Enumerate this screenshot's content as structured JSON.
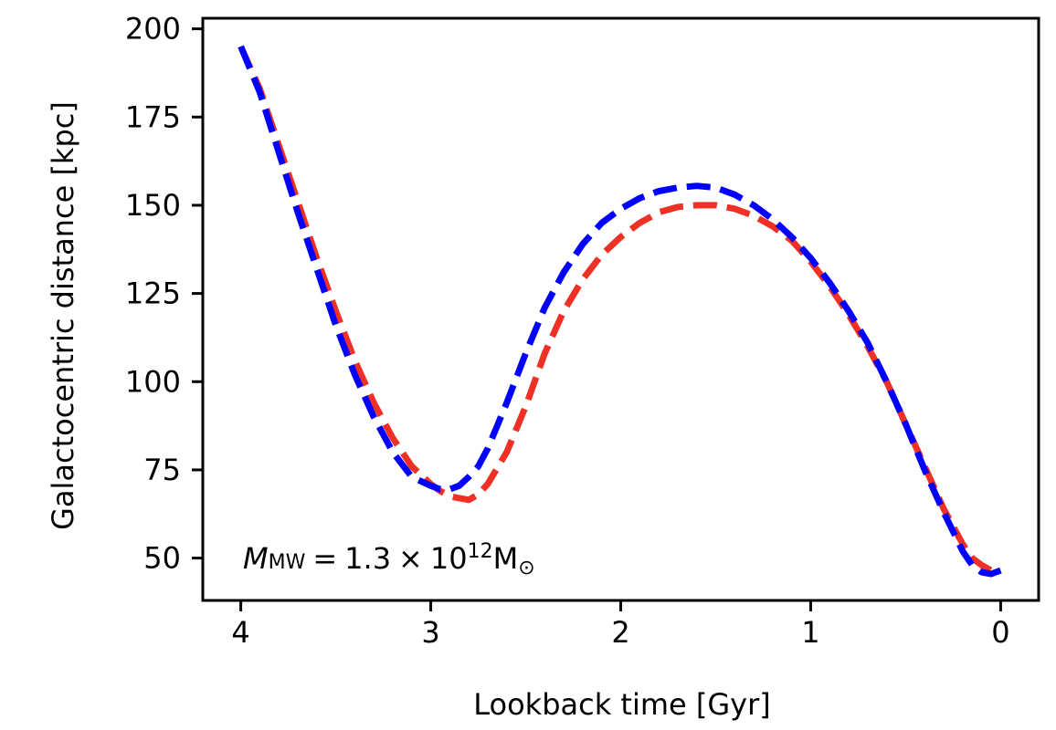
{
  "chart_data": {
    "type": "line",
    "title": "",
    "xlabel": "Lookback time [Gyr]",
    "ylabel": "Galactocentric distance [kpc]",
    "xlim": [
      4.2,
      -0.2
    ],
    "ylim": [
      38,
      203
    ],
    "x_ticks": [
      4,
      3,
      2,
      1,
      0
    ],
    "y_ticks": [
      50,
      75,
      100,
      125,
      150,
      175,
      200
    ],
    "grid": false,
    "legend": "none",
    "annotation": {
      "italic_symbol": "M",
      "subscript": "MW",
      "equals": "=",
      "mantissa": "1.3",
      "times": "×",
      "base": "10",
      "exponent": "12",
      "unit": "M",
      "unit_sub": "⊙"
    },
    "series": [
      {
        "color": "#ee3124",
        "style": "dashed",
        "x": [
          4.0,
          3.9,
          3.8,
          3.7,
          3.6,
          3.5,
          3.4,
          3.3,
          3.2,
          3.1,
          3.0,
          2.95,
          2.9,
          2.85,
          2.8,
          2.75,
          2.7,
          2.6,
          2.5,
          2.4,
          2.3,
          2.2,
          2.1,
          2.0,
          1.9,
          1.8,
          1.7,
          1.6,
          1.5,
          1.4,
          1.3,
          1.2,
          1.1,
          1.0,
          0.9,
          0.8,
          0.7,
          0.6,
          0.5,
          0.4,
          0.3,
          0.2,
          0.15,
          0.1,
          0.05,
          0.0
        ],
        "y": [
          195,
          183,
          167,
          151,
          135,
          120,
          106,
          94,
          84,
          76,
          71,
          69,
          67.5,
          67,
          66.5,
          68,
          71,
          80,
          93,
          108,
          120,
          129,
          136,
          141,
          145,
          148,
          149.5,
          150,
          150,
          149,
          147,
          144,
          140,
          134,
          127,
          119,
          110,
          100,
          88,
          76,
          64,
          54,
          50,
          48,
          46.5,
          46.5
        ]
      },
      {
        "color": "#0000ff",
        "style": "dashed",
        "x": [
          4.0,
          3.9,
          3.8,
          3.7,
          3.6,
          3.5,
          3.4,
          3.3,
          3.2,
          3.1,
          3.0,
          2.95,
          2.9,
          2.85,
          2.8,
          2.75,
          2.7,
          2.6,
          2.5,
          2.4,
          2.3,
          2.2,
          2.1,
          2.0,
          1.9,
          1.8,
          1.7,
          1.6,
          1.5,
          1.4,
          1.3,
          1.2,
          1.1,
          1.0,
          0.9,
          0.8,
          0.7,
          0.6,
          0.5,
          0.4,
          0.3,
          0.2,
          0.15,
          0.1,
          0.05,
          0.0
        ],
        "y": [
          195,
          182,
          165,
          148,
          132,
          116,
          102,
          90,
          80,
          73,
          70.5,
          69.5,
          69.5,
          70.5,
          73,
          76,
          81,
          94,
          108,
          121,
          131,
          139,
          145,
          149,
          152,
          154,
          155,
          155.5,
          155,
          153,
          150,
          146,
          141,
          135,
          128,
          120,
          111,
          100,
          88,
          75,
          63,
          52,
          48,
          46,
          45.5,
          46.5
        ]
      }
    ]
  }
}
